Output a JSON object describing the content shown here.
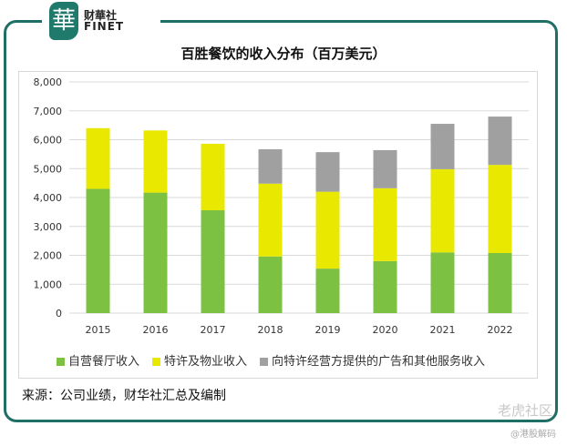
{
  "brand": {
    "logo_char": "華",
    "cn": "财華社",
    "en": "FINET"
  },
  "chart_data": {
    "type": "bar",
    "stacked": true,
    "title": "百胜餐饮的收入分布（百万美元）",
    "categories": [
      "2015",
      "2016",
      "2017",
      "2018",
      "2019",
      "2020",
      "2021",
      "2022"
    ],
    "series": [
      {
        "name": "自营餐厅收入",
        "color": "#7cc142",
        "values": [
          4300,
          4170,
          3560,
          1960,
          1540,
          1800,
          2100,
          2080
        ]
      },
      {
        "name": "特许及物业收入",
        "color": "#e8e800",
        "values": [
          2100,
          2150,
          2300,
          2520,
          2660,
          2520,
          2880,
          3050
        ]
      },
      {
        "name": "向特许经营方提供的广告和其他服务收入",
        "color": "#a0a0a0",
        "values": [
          0,
          0,
          0,
          1190,
          1370,
          1320,
          1570,
          1670
        ]
      }
    ],
    "ylim": [
      0,
      8000
    ],
    "yticks": [
      "0",
      "1,000",
      "2,000",
      "3,000",
      "4,000",
      "5,000",
      "6,000",
      "7,000",
      "8,000"
    ],
    "grid": true,
    "legend": "bottom"
  },
  "source": "来源：公司业绩，财华社汇总及编制",
  "watermark": {
    "main": "老虎社区",
    "sub": "@港股解码"
  }
}
